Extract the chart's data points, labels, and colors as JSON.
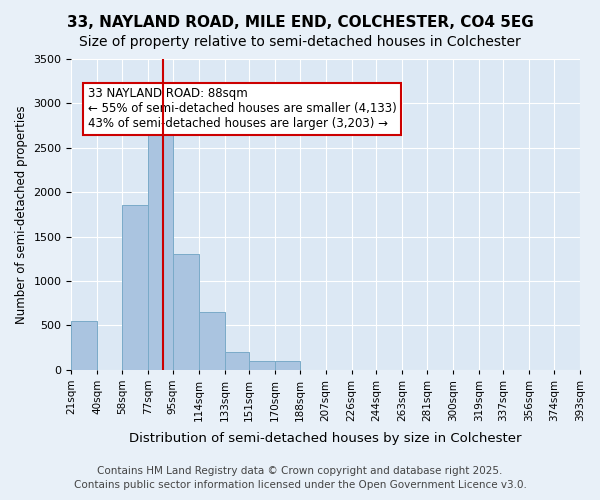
{
  "title1": "33, NAYLAND ROAD, MILE END, COLCHESTER, CO4 5EG",
  "title2": "Size of property relative to semi-detached houses in Colchester",
  "xlabel": "Distribution of semi-detached houses by size in Colchester",
  "ylabel": "Number of semi-detached properties",
  "bin_labels": [
    "21sqm",
    "40sqm",
    "58sqm",
    "77sqm",
    "95sqm",
    "114sqm",
    "133sqm",
    "151sqm",
    "170sqm",
    "188sqm",
    "207sqm",
    "226sqm",
    "244sqm",
    "263sqm",
    "281sqm",
    "300sqm",
    "319sqm",
    "337sqm",
    "356sqm",
    "374sqm",
    "393sqm"
  ],
  "bin_edges": [
    21,
    40,
    58,
    77,
    95,
    114,
    133,
    151,
    170,
    188,
    207,
    226,
    244,
    263,
    281,
    300,
    319,
    337,
    356,
    374,
    393
  ],
  "bar_heights": [
    550,
    0,
    1850,
    2650,
    1300,
    650,
    200,
    100,
    100,
    0,
    0,
    0,
    0,
    0,
    0,
    0,
    0,
    0,
    0,
    0
  ],
  "bar_color": "#aac4e0",
  "bar_edge_color": "#7aaac8",
  "property_size": 88,
  "property_bin_index": 3,
  "redline_color": "#cc0000",
  "annotation_text": "33 NAYLAND ROAD: 88sqm\n← 55% of semi-detached houses are smaller (4,133)\n43% of semi-detached houses are larger (3,203) →",
  "annotation_box_color": "#ffffff",
  "annotation_border_color": "#cc0000",
  "ylim": [
    0,
    3500
  ],
  "yticks": [
    0,
    500,
    1000,
    1500,
    2000,
    2500,
    3000,
    3500
  ],
  "background_color": "#e8f0f8",
  "plot_background_color": "#dce8f4",
  "footer_line1": "Contains HM Land Registry data © Crown copyright and database right 2025.",
  "footer_line2": "Contains public sector information licensed under the Open Government Licence v3.0.",
  "title_fontsize": 11,
  "subtitle_fontsize": 10,
  "annotation_fontsize": 8.5,
  "footer_fontsize": 7.5
}
